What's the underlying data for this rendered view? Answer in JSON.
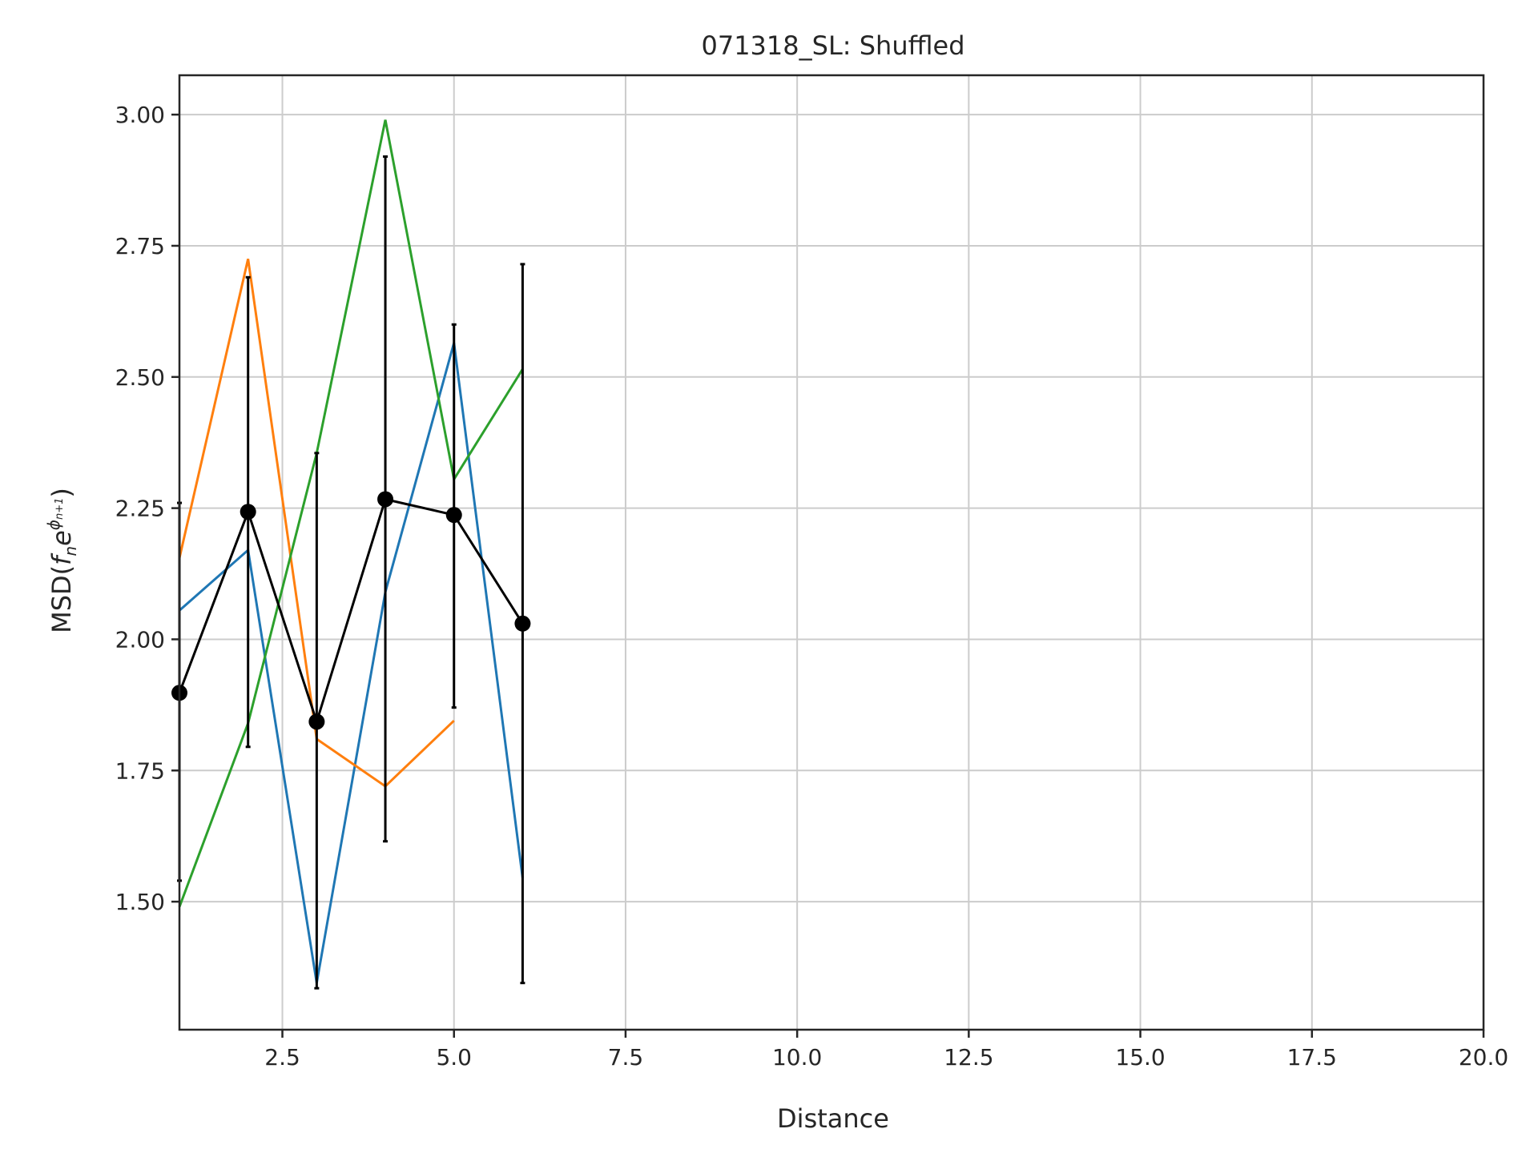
{
  "chart_data": {
    "type": "line",
    "title": "071318_SL: Shuffled",
    "xlabel": "Distance",
    "ylabel": {
      "prefix": "MSD(",
      "f": "f",
      "n": "n",
      "e": "e",
      "phi": "ϕ",
      "phi_sub": "n+1",
      "suffix": ")"
    },
    "xlim": [
      1,
      20
    ],
    "ylim": [
      1.256,
      3.075
    ],
    "grid": true,
    "xticks": [
      2.5,
      5.0,
      7.5,
      10.0,
      12.5,
      15.0,
      17.5,
      20.0
    ],
    "xtick_labels": [
      "2.5",
      "5.0",
      "7.5",
      "10.0",
      "12.5",
      "15.0",
      "17.5",
      "20.0"
    ],
    "yticks": [
      1.5,
      1.75,
      2.0,
      2.25,
      2.5,
      2.75,
      3.0
    ],
    "ytick_labels": [
      "1.50",
      "1.75",
      "2.00",
      "2.25",
      "2.50",
      "2.75",
      "3.00"
    ],
    "series": [
      {
        "color": "#1f77b4",
        "x": [
          1,
          2,
          3,
          4,
          5,
          6
        ],
        "y": [
          2.055,
          2.17,
          1.345,
          2.09,
          2.565,
          1.545
        ]
      },
      {
        "color": "#ff7f0e",
        "x": [
          1,
          2,
          3,
          4,
          5
        ],
        "y": [
          2.155,
          2.725,
          1.81,
          1.72,
          1.845
        ]
      },
      {
        "color": "#2ca02c",
        "x": [
          1,
          2,
          3,
          4,
          5,
          6
        ],
        "y": [
          1.49,
          1.84,
          2.355,
          2.99,
          2.305,
          2.515
        ]
      },
      {
        "color": "#000000",
        "marker": "circle",
        "x": [
          1,
          2,
          3,
          4,
          5,
          6
        ],
        "y": [
          1.898,
          2.243,
          1.843,
          2.267,
          2.237,
          2.03
        ],
        "yerr_low": [
          1.54,
          1.795,
          1.335,
          1.615,
          1.87,
          1.345
        ],
        "yerr_high": [
          2.26,
          2.69,
          2.355,
          2.92,
          2.6,
          2.715
        ]
      }
    ]
  },
  "colors": {
    "grid": "#cccccc",
    "spine": "#262626",
    "background": "#ffffff"
  }
}
